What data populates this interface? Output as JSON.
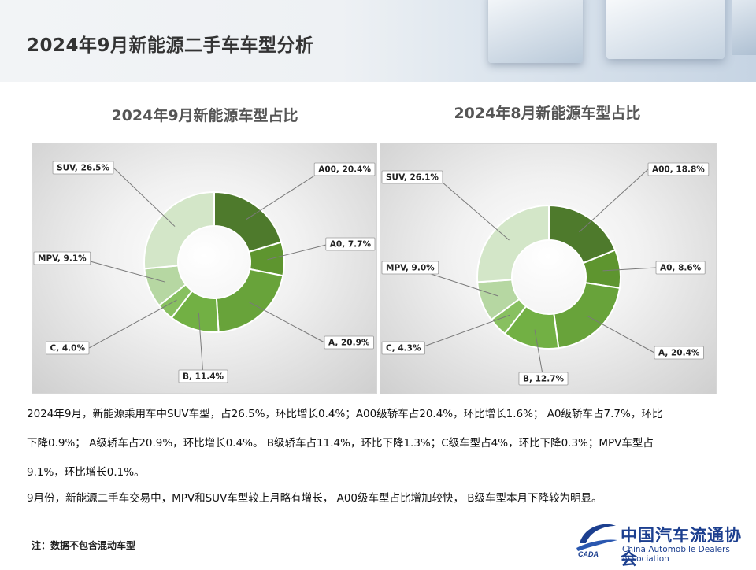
{
  "page": {
    "title": "2024年9月新能源二手车车型分析",
    "paragraphs": [
      "2024年9月，新能源乘用车中SUV车型，占26.5%，环比增长0.4%；A00级轿车占20.4%，环比增长1.6%；  A0级轿车占7.7%，环比",
      "下降0.9%；  A级轿车占20.9%，环比增长0.4%。 B级轿车占11.4%，环比下降1.3%；C级车型占4%，环比下降0.3%；MPV车型占",
      "9.1%，环比增长0.1%。",
      "9月份，新能源二手车交易中，MPV和SUV车型较上月略有增长，  A00级车型占比增加较快，  B级车型本月下降较为明显。"
    ],
    "footnote": "注：数据不包含混动车型",
    "org_name": "中国汽车流通协会",
    "org_name_en": "China Automobile Dealers Association",
    "logo_text": "CADA"
  },
  "chart_data": [
    {
      "type": "pie",
      "title": "2024年9月新能源车型占比",
      "categories": [
        "A00",
        "A0",
        "A",
        "B",
        "C",
        "MPV",
        "SUV"
      ],
      "values": [
        20.4,
        7.7,
        20.9,
        11.4,
        4.0,
        9.1,
        26.5
      ],
      "labels": [
        "A00, 20.4%",
        "A0, 7.7%",
        "A, 20.9%",
        "B, 11.4%",
        "C, 4.0%",
        "MPV, 9.1%",
        "SUV, 26.5%"
      ],
      "colors": [
        "#4e7a2c",
        "#5e952f",
        "#68a33a",
        "#72b044",
        "#88c060",
        "#b6d7a2",
        "#d3e6c8"
      ],
      "donut": true,
      "legend": "none"
    },
    {
      "type": "pie",
      "title": "2024年8月新能源车型占比",
      "categories": [
        "A00",
        "A0",
        "A",
        "B",
        "C",
        "MPV",
        "SUV"
      ],
      "values": [
        18.8,
        8.6,
        20.4,
        12.7,
        4.3,
        9.0,
        26.1
      ],
      "labels": [
        "A00, 18.8%",
        "A0, 8.6%",
        "A, 20.4%",
        "B, 12.7%",
        "C, 4.3%",
        "MPV, 9.0%",
        "SUV, 26.1%"
      ],
      "colors": [
        "#4e7a2c",
        "#5e952f",
        "#68a33a",
        "#72b044",
        "#88c060",
        "#b6d7a2",
        "#d3e6c8"
      ],
      "donut": true,
      "legend": "none"
    }
  ]
}
